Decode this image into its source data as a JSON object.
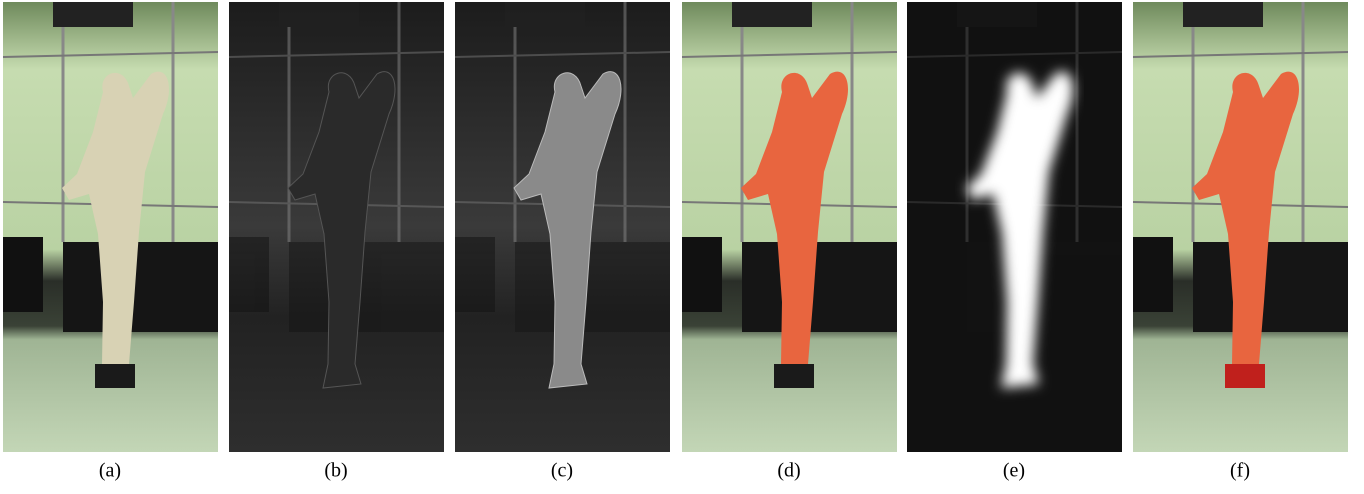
{
  "panels": [
    {
      "caption": "(a)"
    },
    {
      "caption": "(b)"
    },
    {
      "caption": "(c)"
    },
    {
      "caption": "(d)"
    },
    {
      "caption": "(e)"
    },
    {
      "caption": "(f)"
    }
  ]
}
